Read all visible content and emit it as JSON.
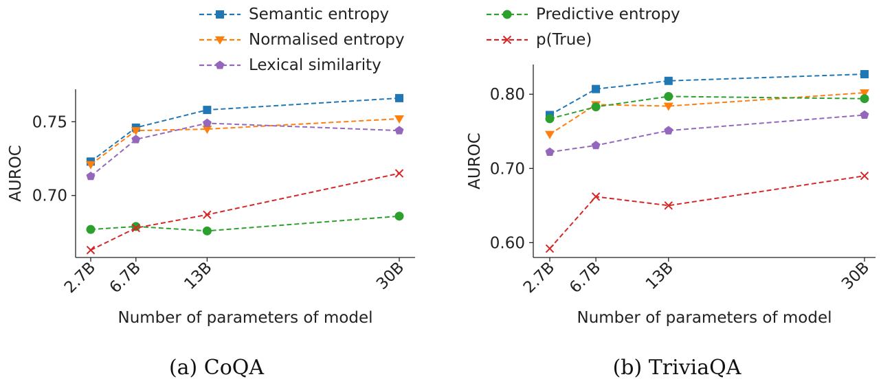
{
  "legend": {
    "items": [
      {
        "label": "Semantic entropy",
        "color": "#1f77b4",
        "marker": "square"
      },
      {
        "label": "Normalised entropy",
        "color": "#ff7f0e",
        "marker": "triangle-down"
      },
      {
        "label": "Lexical similarity",
        "color": "#9467bd",
        "marker": "pentagon"
      },
      {
        "label": "Predictive entropy",
        "color": "#2ca02c",
        "marker": "circle"
      },
      {
        "label": "p(True)",
        "color": "#d62728",
        "marker": "x"
      }
    ]
  },
  "captions": {
    "coqa": "(a) CoQA",
    "trivia": "(b) TriviaQA"
  },
  "chart_data": [
    {
      "type": "line",
      "xlabel": "Number of parameters of model",
      "ylabel": "AUROC",
      "x": [
        2.7,
        6.7,
        13,
        30
      ],
      "x_tick_labels": [
        "2.7B",
        "6.7B",
        "13B",
        "30B"
      ],
      "y_ticks": [
        0.7,
        0.75
      ],
      "y_tick_labels": [
        "0.70",
        "0.75"
      ],
      "ylim": [
        0.658,
        0.772
      ],
      "grid": false,
      "series": [
        {
          "name": "Semantic entropy",
          "color": "#1f77b4",
          "marker": "square",
          "values": [
            0.723,
            0.746,
            0.758,
            0.766
          ]
        },
        {
          "name": "Normalised entropy",
          "color": "#ff7f0e",
          "marker": "triangle-down",
          "values": [
            0.721,
            0.744,
            0.745,
            0.752
          ]
        },
        {
          "name": "Lexical similarity",
          "color": "#9467bd",
          "marker": "pentagon",
          "values": [
            0.713,
            0.738,
            0.749,
            0.744
          ]
        },
        {
          "name": "Predictive entropy",
          "color": "#2ca02c",
          "marker": "circle",
          "values": [
            0.677,
            0.679,
            0.676,
            0.686
          ]
        },
        {
          "name": "p(True)",
          "color": "#d62728",
          "marker": "x",
          "values": [
            0.663,
            0.678,
            0.687,
            0.715
          ]
        }
      ]
    },
    {
      "type": "line",
      "xlabel": "Number of parameters of model",
      "ylabel": "AUROC",
      "x": [
        2.7,
        6.7,
        13,
        30
      ],
      "x_tick_labels": [
        "2.7B",
        "6.7B",
        "13B",
        "30B"
      ],
      "y_ticks": [
        0.6,
        0.7,
        0.8
      ],
      "y_tick_labels": [
        "0.60",
        "0.70",
        "0.80"
      ],
      "ylim": [
        0.58,
        0.84
      ],
      "grid": false,
      "series": [
        {
          "name": "Semantic entropy",
          "color": "#1f77b4",
          "marker": "square",
          "values": [
            0.772,
            0.807,
            0.818,
            0.827
          ]
        },
        {
          "name": "Normalised entropy",
          "color": "#ff7f0e",
          "marker": "triangle-down",
          "values": [
            0.746,
            0.786,
            0.784,
            0.802
          ]
        },
        {
          "name": "Lexical similarity",
          "color": "#9467bd",
          "marker": "pentagon",
          "values": [
            0.722,
            0.731,
            0.751,
            0.772
          ]
        },
        {
          "name": "Predictive entropy",
          "color": "#2ca02c",
          "marker": "circle",
          "values": [
            0.767,
            0.783,
            0.797,
            0.794
          ]
        },
        {
          "name": "p(True)",
          "color": "#d62728",
          "marker": "x",
          "values": [
            0.592,
            0.662,
            0.65,
            0.69
          ]
        }
      ]
    }
  ]
}
